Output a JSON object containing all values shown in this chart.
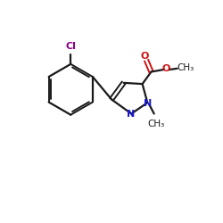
{
  "background_color": "#ffffff",
  "bond_color": "#1a1a1a",
  "N_color": "#1a1acc",
  "O_color": "#cc1111",
  "Cl_color": "#8b008b",
  "figsize": [
    2.5,
    2.5
  ],
  "dpi": 100,
  "xlim": [
    0,
    10
  ],
  "ylim": [
    0,
    10
  ]
}
